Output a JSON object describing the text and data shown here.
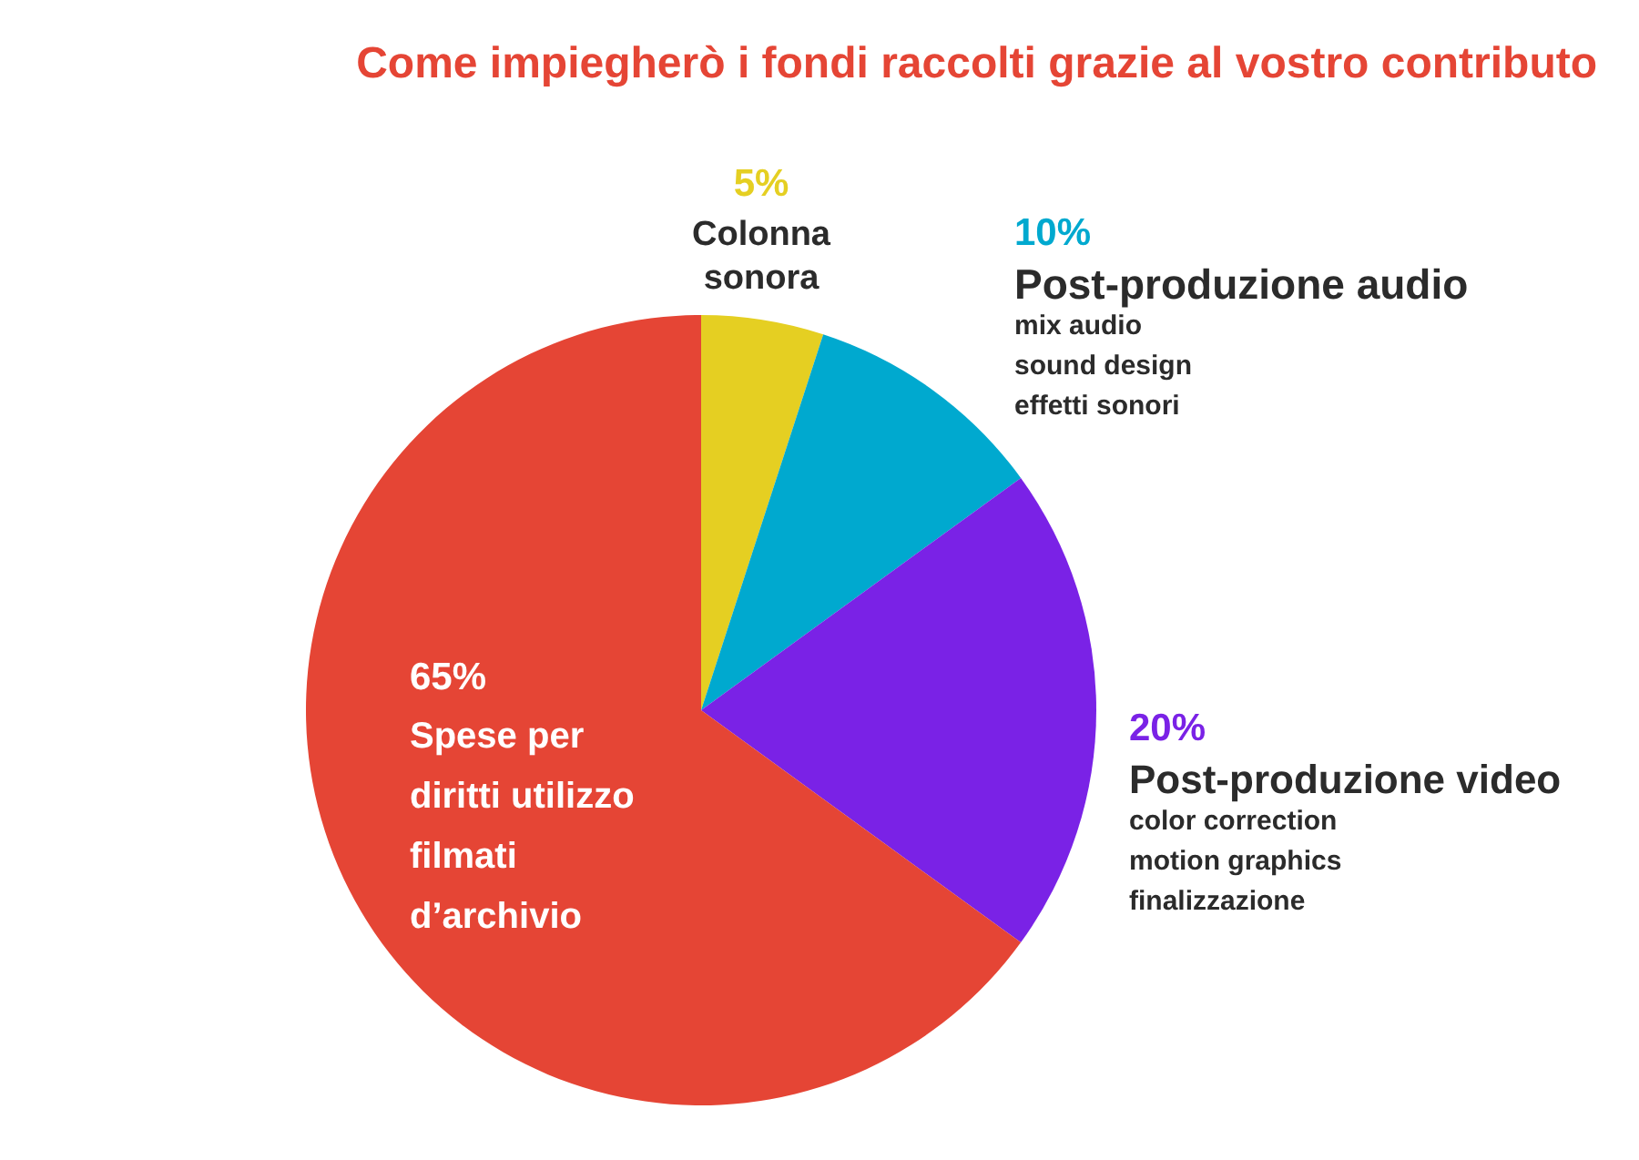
{
  "chart_data": {
    "type": "pie",
    "title": "Come impiegherò i fondi raccolti grazie al vostro contributo",
    "categories": [
      "Colonna sonora",
      "Post-produzione audio\nmix audio\nsound design\neffetti sonori",
      "Post-produzione video\ncolor correction\nmotion graphics\nfinalizzazione",
      "Spese per diritti utilizzo filmati d’archivio"
    ],
    "values": [
      5,
      10,
      20,
      65
    ],
    "value_labels": [
      "5%",
      "10%",
      "20%",
      "65%"
    ],
    "colors": [
      "#e5cf22",
      "#00a9cf",
      "#7a22e6",
      "#e54535"
    ],
    "legend": false
  }
}
